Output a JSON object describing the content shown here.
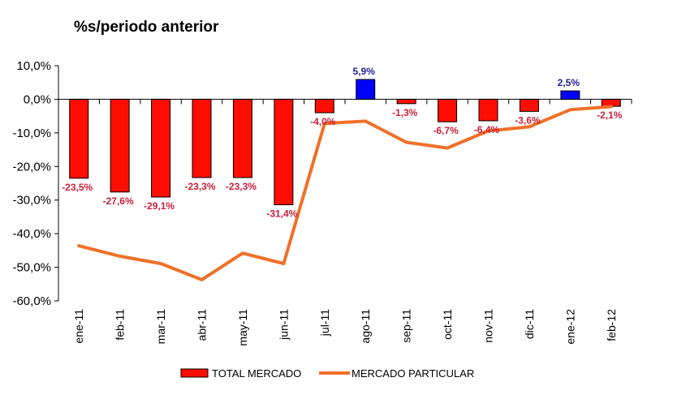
{
  "chart_data": {
    "type": "bar",
    "title": "%s/periodo anterior",
    "xlabel": "",
    "ylabel": "",
    "ylim": [
      -60,
      10
    ],
    "yticks": [
      10,
      0,
      -10,
      -20,
      -30,
      -40,
      -50,
      -60
    ],
    "ytick_labels": [
      "10,0%",
      "0,0%",
      "-10,0%",
      "-20,0%",
      "-30,0%",
      "-40,0%",
      "-50,0%",
      "-60,0%"
    ],
    "grid": false,
    "legend_position": "bottom",
    "categories": [
      "ene-11",
      "feb-11",
      "mar-11",
      "abr-11",
      "may-11",
      "jun-11",
      "jul-11",
      "ago-11",
      "sep-11",
      "oct-11",
      "nov-11",
      "dic-11",
      "ene-12",
      "feb-12"
    ],
    "series": [
      {
        "name": "TOTAL MERCADO",
        "type": "bar",
        "color": "#ff0d00",
        "positive_color": "#0000ff",
        "label_color_negative": "#cc1f3a",
        "label_color_positive": "#1f1f99",
        "values": [
          -23.5,
          -27.6,
          -29.1,
          -23.3,
          -23.3,
          -31.4,
          -4.0,
          5.9,
          -1.3,
          -6.7,
          -6.4,
          -3.6,
          2.5,
          -2.1
        ],
        "labels": [
          "-23,5%",
          "-27,6%",
          "-29,1%",
          "-23,3%",
          "-23,3%",
          "-31,4%",
          "-4,0%",
          "5,9%",
          "-1,3%",
          "-6,7%",
          "-6,4%",
          "-3,6%",
          "2,5%",
          "-2,1%"
        ]
      },
      {
        "name": "MERCADO PARTICULAR",
        "type": "line",
        "color": "#f07028",
        "values": [
          -43.6,
          -46.7,
          -48.9,
          -53.7,
          -45.8,
          -48.9,
          -7.2,
          -6.5,
          -12.8,
          -14.5,
          -9.4,
          -8.2,
          -3.1,
          -2.2
        ]
      }
    ]
  }
}
